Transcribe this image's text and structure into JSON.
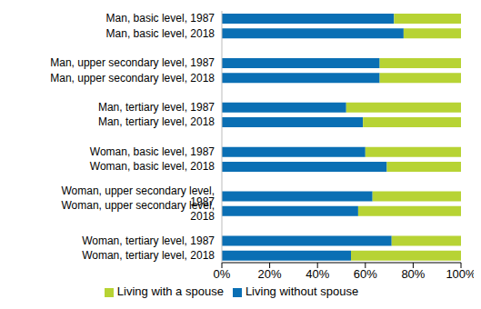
{
  "chart_data": {
    "type": "bar",
    "orientation": "horizontal",
    "stacked": true,
    "grid": false,
    "legend": "bottom",
    "categories": [
      "Man, basic level, 1987",
      "Man, basic level, 2018",
      null,
      "Man, upper secondary level, 1987",
      "Man, upper secondary level, 2018",
      null,
      "Man, tertiary level, 1987",
      "Man, tertiary level, 2018",
      null,
      "Woman, basic level, 1987",
      "Woman, basic level, 2018",
      null,
      "Woman, upper secondary level, 1987",
      "Woman, upper secondary level, 2018",
      null,
      "Woman, tertiary level, 1987",
      "Woman, tertiary level, 2018"
    ],
    "series": [
      {
        "name": "Living without spouse",
        "color": "#0a6fb4",
        "values": [
          72,
          76,
          null,
          66,
          66,
          null,
          52,
          59,
          null,
          60,
          69,
          null,
          63,
          57,
          null,
          71,
          54
        ]
      },
      {
        "name": "Living with a spouse",
        "color": "#b7d334",
        "values": [
          28,
          24,
          null,
          34,
          34,
          null,
          48,
          41,
          null,
          40,
          31,
          null,
          37,
          43,
          null,
          29,
          46
        ]
      }
    ],
    "xlim": [
      0,
      100
    ],
    "xticks": [
      {
        "value": 0,
        "label": "0%"
      },
      {
        "value": 20,
        "label": "20%"
      },
      {
        "value": 40,
        "label": "40%"
      },
      {
        "value": 60,
        "label": "60%"
      },
      {
        "value": 80,
        "label": "80%"
      },
      {
        "value": 100,
        "label": "100%"
      }
    ]
  }
}
